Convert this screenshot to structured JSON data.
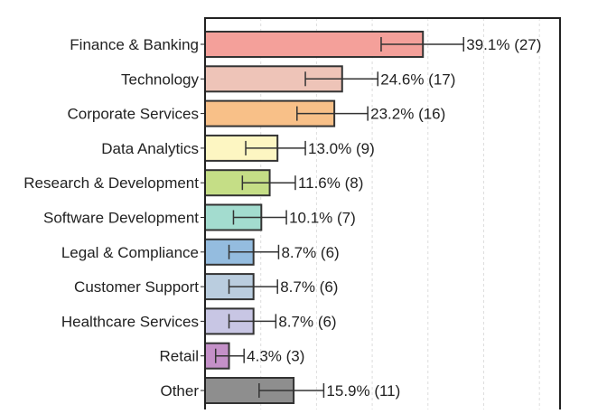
{
  "chart_data": {
    "type": "bar",
    "orientation": "horizontal",
    "title": "",
    "xlabel": "",
    "ylabel": "",
    "xlim": [
      0,
      63.7
    ],
    "grid": {
      "x": true,
      "y": false,
      "style": "dashed"
    },
    "categories": [
      "Finance & Banking",
      "Technology",
      "Corporate Services",
      "Data Analytics",
      "Research & Development",
      "Software Development",
      "Legal & Compliance",
      "Customer Support",
      "Healthcare Services",
      "Retail",
      "Other"
    ],
    "values": [
      39.1,
      24.6,
      23.2,
      13.0,
      11.6,
      10.1,
      8.7,
      8.7,
      8.7,
      4.3,
      15.9
    ],
    "counts": [
      27,
      17,
      16,
      9,
      8,
      7,
      6,
      6,
      6,
      3,
      11
    ],
    "error_low": [
      31.6,
      18.0,
      16.5,
      7.3,
      6.7,
      5.1,
      4.3,
      4.3,
      4.3,
      1.9,
      9.7
    ],
    "error_high": [
      46.4,
      31.0,
      29.2,
      18.0,
      16.2,
      14.6,
      13.2,
      13.0,
      12.7,
      7.0,
      21.3
    ],
    "data_labels": [
      "39.1% (27)",
      "24.6% (17)",
      "23.2% (16)",
      "13.0% (9)",
      "11.6% (8)",
      "10.1% (7)",
      "8.7% (6)",
      "8.7% (6)",
      "8.7% (6)",
      "4.3% (3)",
      "15.9% (11)"
    ],
    "colors": [
      "#f4a09a",
      "#eec4b8",
      "#f8c088",
      "#fdf6c2",
      "#c5de86",
      "#a3dccf",
      "#94bcdf",
      "#bacddf",
      "#c8c6e4",
      "#c490c8",
      "#8e8e8e"
    ]
  }
}
